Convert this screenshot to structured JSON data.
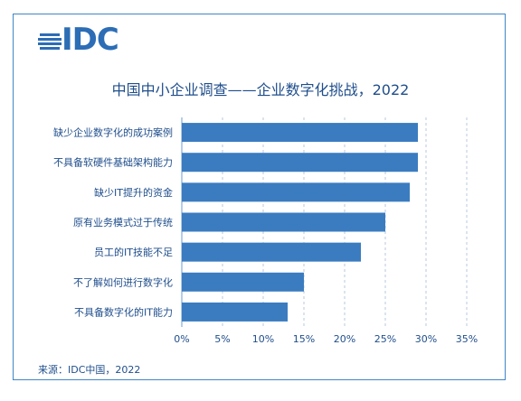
{
  "logo": {
    "text": "IDC"
  },
  "source": "来源：IDC中国，2022",
  "chart_data": {
    "type": "bar",
    "orientation": "horizontal",
    "title": "中国中小企业调查——企业数字化挑战，2022",
    "categories": [
      "缺少企业数字化的成功案例",
      "不具备软硬件基础架构能力",
      "缺少IT提升的资金",
      "原有业务模式过于传统",
      "员工的IT技能不足",
      "不了解如何进行数字化",
      "不具备数字化的IT能力"
    ],
    "values": [
      29,
      29,
      28,
      25,
      22,
      15,
      13
    ],
    "xlim": [
      0,
      35
    ],
    "xticks": [
      "0%",
      "5%",
      "10%",
      "15%",
      "20%",
      "25%",
      "30%",
      "35%"
    ],
    "grid": "vertical-dashed",
    "bar_color": "#3b7cc0"
  }
}
